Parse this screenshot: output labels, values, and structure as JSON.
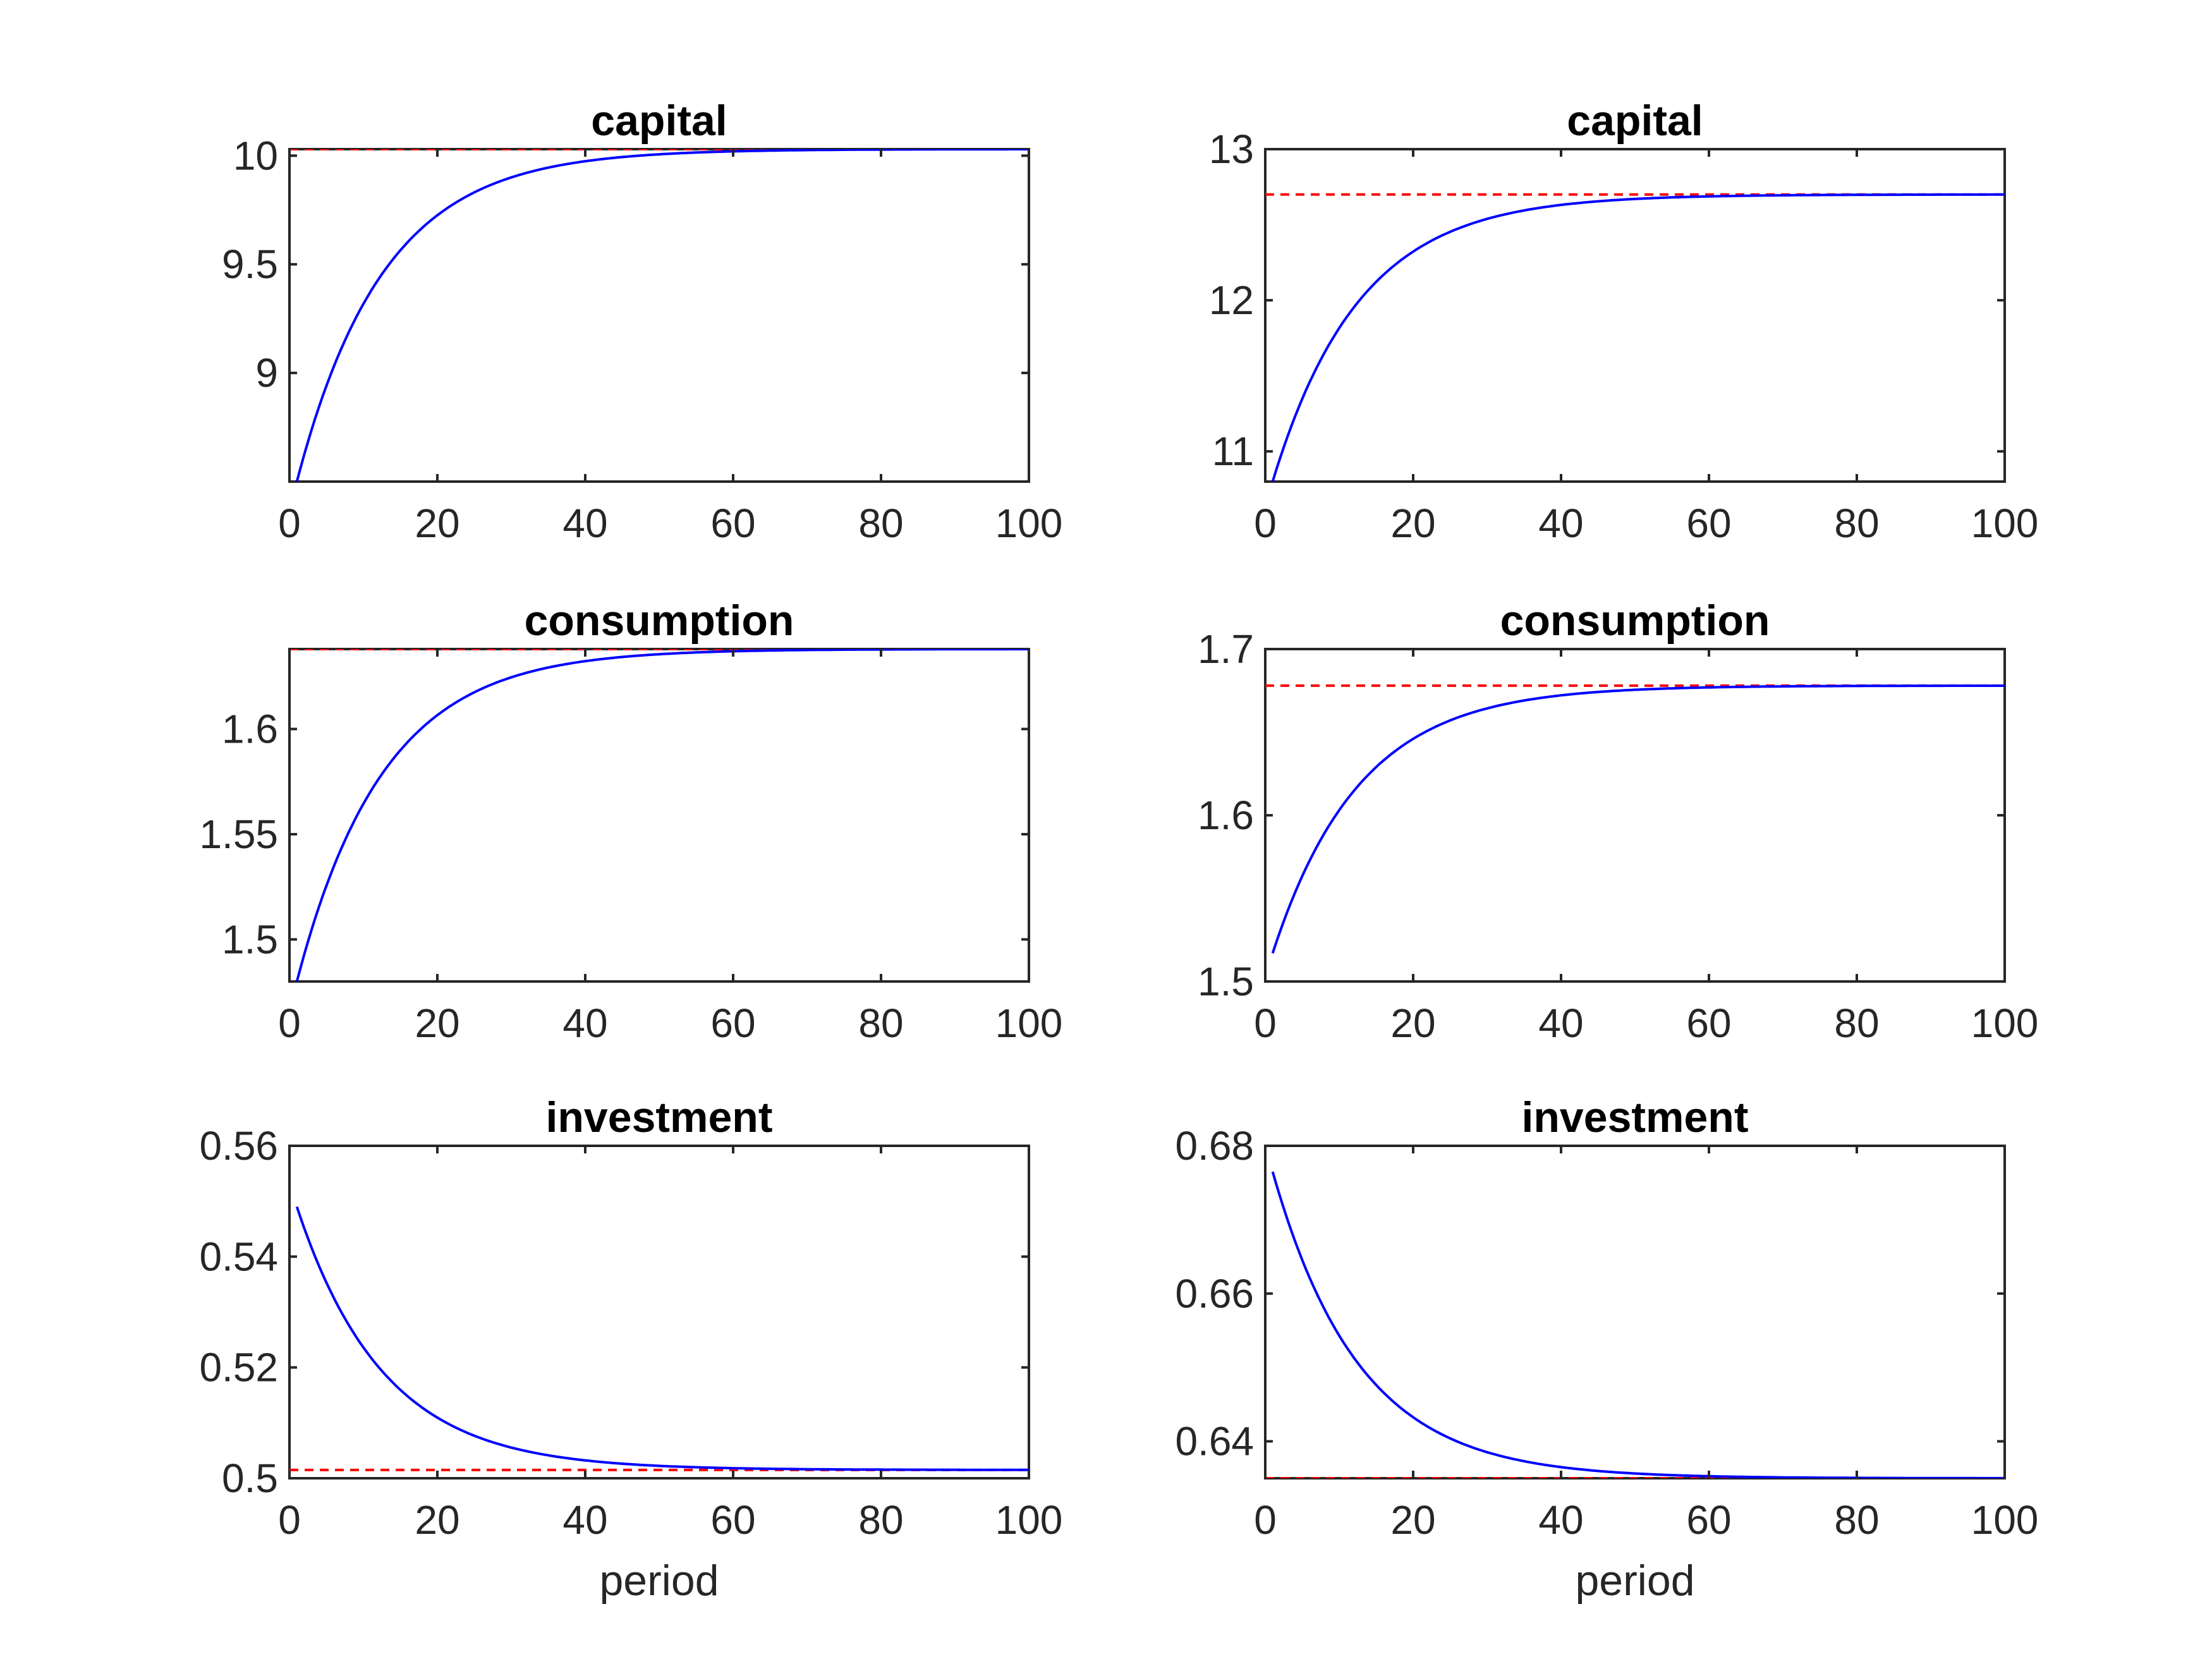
{
  "figure": {
    "xlabel": "period"
  },
  "colors": {
    "transition_path": "#0000ff",
    "steady_state": "#ff0000"
  },
  "chart_data": [
    {
      "type": "line",
      "title": "capital",
      "xlabel": "",
      "ylabel": "",
      "xlim": [
        0,
        100
      ],
      "ylim": [
        8.5,
        10.03
      ],
      "xticks": [
        "0",
        "20",
        "40",
        "60",
        "80",
        "100"
      ],
      "yticks": [
        "9",
        "9.5",
        "10"
      ],
      "grid": false,
      "start": [
        1,
        8.5
      ],
      "steady_state": 10.03,
      "decay": 0.085
    },
    {
      "type": "line",
      "title": "capital",
      "xlabel": "",
      "ylabel": "",
      "xlim": [
        0,
        100
      ],
      "ylim": [
        10.8,
        13
      ],
      "xticks": [
        "0",
        "20",
        "40",
        "60",
        "80",
        "100"
      ],
      "yticks": [
        "11",
        "12",
        "13"
      ],
      "grid": false,
      "start": [
        1,
        10.8
      ],
      "steady_state": 12.7,
      "decay": 0.085
    },
    {
      "type": "line",
      "title": "consumption",
      "xlabel": "",
      "ylabel": "",
      "xlim": [
        0,
        100
      ],
      "ylim": [
        1.48,
        1.638
      ],
      "xticks": [
        "0",
        "20",
        "40",
        "60",
        "80",
        "100"
      ],
      "yticks": [
        "1.5",
        "1.55",
        "1.6"
      ],
      "grid": false,
      "start": [
        1,
        1.48
      ],
      "steady_state": 1.638,
      "decay": 0.085
    },
    {
      "type": "line",
      "title": "consumption",
      "xlabel": "",
      "ylabel": "",
      "xlim": [
        0,
        100
      ],
      "ylim": [
        1.5,
        1.7
      ],
      "xticks": [
        "0",
        "20",
        "40",
        "60",
        "80",
        "100"
      ],
      "yticks": [
        "1.5",
        "1.6",
        "1.7"
      ],
      "grid": false,
      "start": [
        1,
        1.517
      ],
      "steady_state": 1.678,
      "decay": 0.085
    },
    {
      "type": "line",
      "title": "investment",
      "xlabel": "period",
      "ylabel": "",
      "xlim": [
        0,
        100
      ],
      "ylim": [
        0.5,
        0.56
      ],
      "xticks": [
        "0",
        "20",
        "40",
        "60",
        "80",
        "100"
      ],
      "yticks": [
        "0.5",
        "0.52",
        "0.54",
        "0.56"
      ],
      "grid": false,
      "start": [
        1,
        0.549
      ],
      "steady_state": 0.5015,
      "decay": 0.085
    },
    {
      "type": "line",
      "title": "investment",
      "xlabel": "period",
      "ylabel": "",
      "xlim": [
        0,
        100
      ],
      "ylim": [
        0.635,
        0.68
      ],
      "xticks": [
        "0",
        "20",
        "40",
        "60",
        "80",
        "100"
      ],
      "yticks": [
        "0.64",
        "0.66",
        "0.68"
      ],
      "grid": false,
      "start": [
        1,
        0.6765
      ],
      "steady_state": 0.635,
      "decay": 0.085
    }
  ]
}
